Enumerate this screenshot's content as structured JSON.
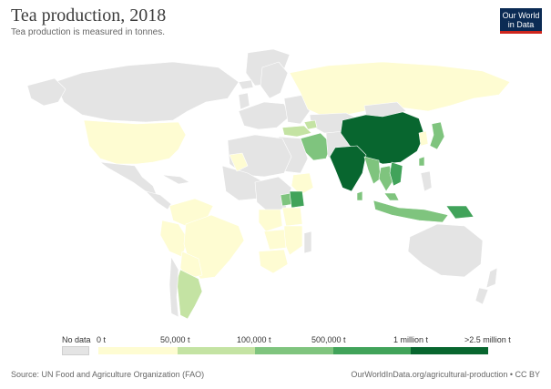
{
  "header": {
    "title": "Tea production, 2018",
    "subtitle": "Tea production is measured in tonnes."
  },
  "logo": {
    "line1": "Our World",
    "line2": "in Data"
  },
  "legend": {
    "no_data_label": "No data",
    "ticks": [
      "0 t",
      "50,000 t",
      "100,000 t",
      "500,000 t",
      "1 million t",
      ">2.5 million t"
    ],
    "colors": [
      "#fefcd2",
      "#c4e3a3",
      "#7fc47e",
      "#41a35a",
      "#08662f"
    ],
    "no_data_color": "#e4e4e4"
  },
  "footer": {
    "source": "Source: UN Food and Agriculture Organization (FAO)",
    "credit": "OurWorldInData.org/agricultural-production • CC BY"
  },
  "map_colors": {
    "no_data": "#e4e4e4",
    "tier1": "#fefcd2",
    "tier2": "#c4e3a3",
    "tier3": "#7fc47e",
    "tier4": "#41a35a",
    "tier5": "#08662f",
    "border": "#ffffff"
  }
}
